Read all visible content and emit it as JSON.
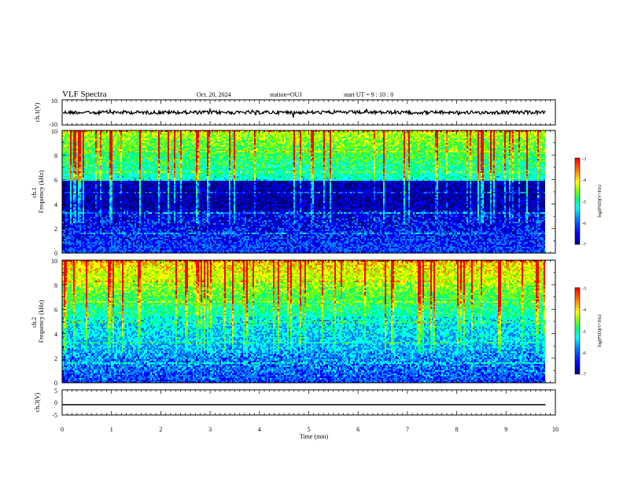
{
  "header": {
    "title": "VLF Spectra",
    "date": "Oct. 20, 2024",
    "station": "station=OUJ",
    "start_ut": "start UT =  9 : 10 : 0"
  },
  "chart_data": [
    {
      "type": "line",
      "panel": "ch.1 waveform",
      "ylabel": "ch.1(V)",
      "ylim": [
        -10,
        10
      ],
      "yticks": [
        "10",
        "-10"
      ],
      "xlim": [
        0,
        10
      ],
      "series": [
        {
          "baseline": 0,
          "color": "#000000"
        }
      ]
    },
    {
      "type": "heatmap",
      "panel": "ch.1 spectrogram",
      "ylabel": "ch.1\nFrequency (kHz)",
      "ylim": [
        0,
        10
      ],
      "yticks": [
        "0",
        "2",
        "4",
        "6",
        "8",
        "10"
      ],
      "xlim": [
        0,
        9.8
      ],
      "colorbar": {
        "label": "log(PSD)(V²/Hz)",
        "range": [
          -7,
          -3
        ],
        "ticks": [
          "-3",
          "-4",
          "-5",
          "-6",
          "-7"
        ]
      }
    },
    {
      "type": "heatmap",
      "panel": "ch.2 spectrogram",
      "ylabel": "ch.2\nFrequency (kHz)",
      "ylim": [
        0,
        10
      ],
      "yticks": [
        "0",
        "2",
        "4",
        "6",
        "8",
        "10"
      ],
      "xlim": [
        0,
        9.8
      ],
      "colorbar": {
        "label": "log(PSD)(V²/Hz)",
        "range": [
          -7,
          -3
        ],
        "ticks": [
          "-3",
          "-4",
          "-5",
          "-6",
          "-7"
        ]
      }
    },
    {
      "type": "line",
      "panel": "ch.3 waveform",
      "ylabel": "ch.3(V)",
      "ylim": [
        -5,
        5
      ],
      "yticks": [
        "5",
        "0",
        "-5"
      ],
      "xlim": [
        0,
        10
      ],
      "series": [
        {
          "x": [
            0,
            9.8
          ],
          "y": [
            -0.9,
            -0.9
          ],
          "color": "#000000"
        }
      ]
    }
  ],
  "x_axis": {
    "label": "Time (min)",
    "ticks": [
      "0",
      "1",
      "2",
      "3",
      "4",
      "5",
      "6",
      "7",
      "8",
      "9",
      "10"
    ]
  },
  "colormap": [
    "#000080",
    "#0000ff",
    "#0080ff",
    "#00ffff",
    "#00ff80",
    "#80ff00",
    "#ffff00",
    "#ff8000",
    "#ff0000"
  ]
}
